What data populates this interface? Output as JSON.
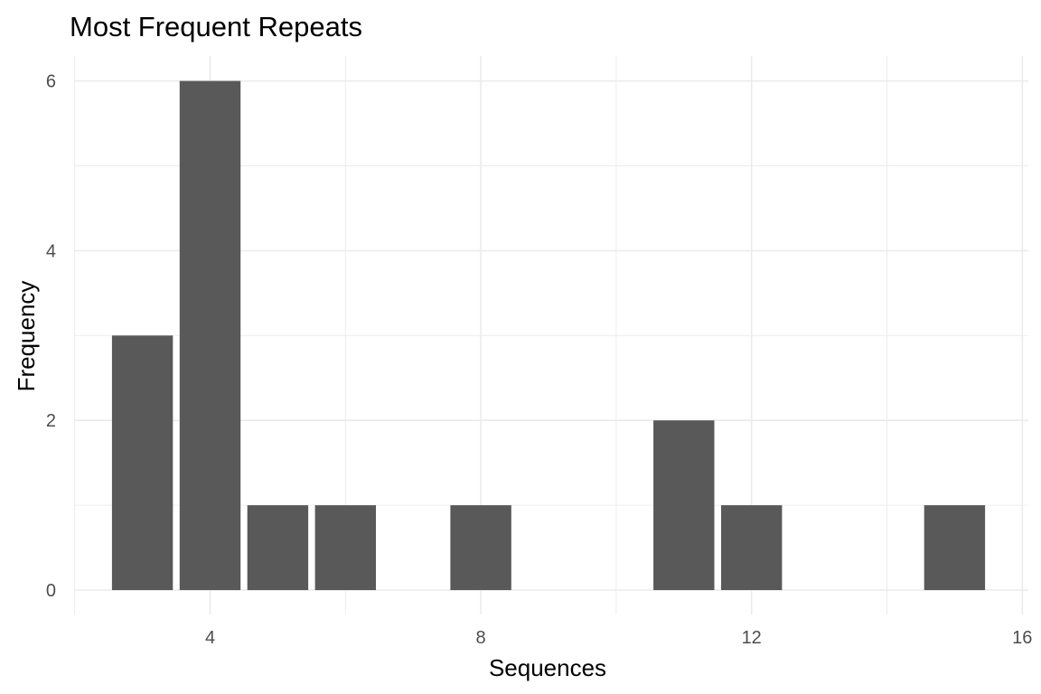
{
  "chart_data": {
    "type": "bar",
    "title": "Most Frequent Repeats",
    "xlabel": "Sequences",
    "ylabel": "Frequency",
    "x": [
      3,
      4,
      5,
      6,
      8,
      11,
      12,
      15
    ],
    "values": [
      3,
      6,
      1,
      1,
      1,
      2,
      1,
      1
    ],
    "bar_width": 0.9,
    "xlim": [
      2.0,
      16.1
    ],
    "ylim": [
      0,
      6.3
    ],
    "x_ticks": [
      4,
      8,
      12,
      16
    ],
    "x_tick_labels": [
      "4",
      "8",
      "12",
      "16"
    ],
    "y_ticks": [
      0,
      2,
      4,
      6
    ],
    "y_tick_labels": [
      "0",
      "2",
      "4",
      "6"
    ],
    "x_minor_ticks": [
      2,
      6,
      10,
      14
    ],
    "y_minor_ticks": [
      1,
      3,
      5
    ],
    "grid": true,
    "bar_color": "#595959",
    "grid_color": "#ebebeb"
  }
}
